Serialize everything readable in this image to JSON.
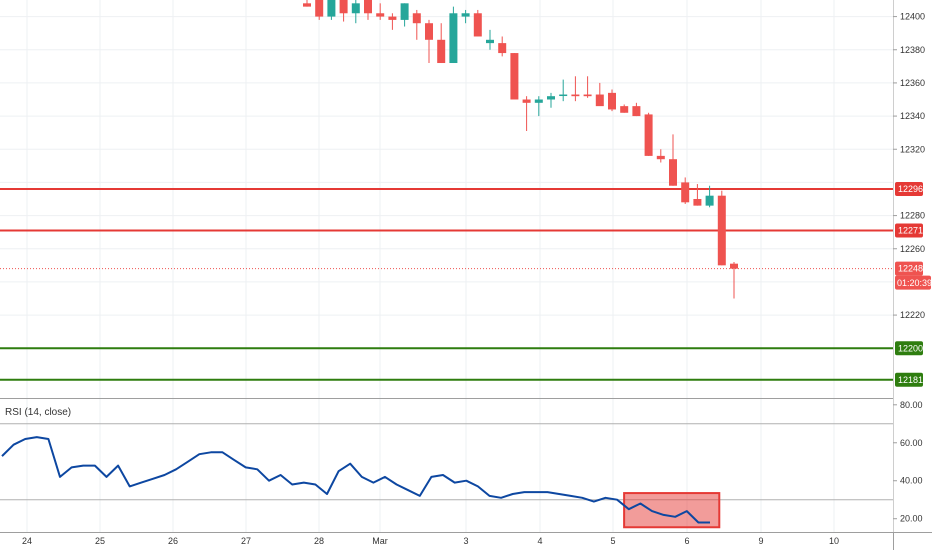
{
  "chart_data": [
    {
      "type": "candlestick",
      "price_axis": {
        "ticks": [
          "12400",
          "12380",
          "12360",
          "12340",
          "12320",
          "12280",
          "12260",
          "12220"
        ],
        "tick_values": [
          12400,
          12380,
          12360,
          12340,
          12320,
          12280,
          12260,
          12220
        ],
        "range": [
          12170,
          12410
        ]
      },
      "time_axis": {
        "labels": [
          "24",
          "25",
          "26",
          "27",
          "28",
          "Mar",
          "3",
          "4",
          "5",
          "6",
          "9",
          "10"
        ]
      },
      "candles": [
        {
          "o": 12408,
          "h": 12410,
          "l": 12406,
          "c": 12406
        },
        {
          "o": 12410,
          "h": 12412,
          "l": 12398,
          "c": 12400
        },
        {
          "o": 12400,
          "h": 12412,
          "l": 12398,
          "c": 12410
        },
        {
          "o": 12410,
          "h": 12412,
          "l": 12397,
          "c": 12402
        },
        {
          "o": 12402,
          "h": 12412,
          "l": 12396,
          "c": 12408
        },
        {
          "o": 12412,
          "h": 12414,
          "l": 12398,
          "c": 12402
        },
        {
          "o": 12402,
          "h": 12408,
          "l": 12398,
          "c": 12400
        },
        {
          "o": 12400,
          "h": 12402,
          "l": 12392,
          "c": 12398
        },
        {
          "o": 12398,
          "h": 12408,
          "l": 12394,
          "c": 12408
        },
        {
          "o": 12402,
          "h": 12404,
          "l": 12386,
          "c": 12396
        },
        {
          "o": 12396,
          "h": 12398,
          "l": 12372,
          "c": 12386
        },
        {
          "o": 12386,
          "h": 12396,
          "l": 12372,
          "c": 12372
        },
        {
          "o": 12372,
          "h": 12406,
          "l": 12372,
          "c": 12402
        },
        {
          "o": 12400,
          "h": 12404,
          "l": 12396,
          "c": 12402
        },
        {
          "o": 12402,
          "h": 12404,
          "l": 12388,
          "c": 12388
        },
        {
          "o": 12384,
          "h": 12392,
          "l": 12380,
          "c": 12386
        },
        {
          "o": 12384,
          "h": 12388,
          "l": 12376,
          "c": 12378
        },
        {
          "o": 12378,
          "h": 12378,
          "l": 12350,
          "c": 12350
        },
        {
          "o": 12350,
          "h": 12352,
          "l": 12331,
          "c": 12348
        },
        {
          "o": 12348,
          "h": 12352,
          "l": 12340,
          "c": 12350
        },
        {
          "o": 12350,
          "h": 12354,
          "l": 12345,
          "c": 12352
        },
        {
          "o": 12353,
          "h": 12362,
          "l": 12349,
          "c": 12353
        },
        {
          "o": 12353,
          "h": 12364,
          "l": 12349,
          "c": 12352
        },
        {
          "o": 12353,
          "h": 12364,
          "l": 12351,
          "c": 12352
        },
        {
          "o": 12353,
          "h": 12360,
          "l": 12347,
          "c": 12346
        },
        {
          "o": 12354,
          "h": 12356,
          "l": 12343,
          "c": 12344
        },
        {
          "o": 12346,
          "h": 12347,
          "l": 12342,
          "c": 12342
        },
        {
          "o": 12346,
          "h": 12348,
          "l": 12340,
          "c": 12340
        },
        {
          "o": 12341,
          "h": 12342,
          "l": 12316,
          "c": 12316
        },
        {
          "o": 12316,
          "h": 12320,
          "l": 12312,
          "c": 12314
        },
        {
          "o": 12314,
          "h": 12329,
          "l": 12298,
          "c": 12298
        },
        {
          "o": 12300,
          "h": 12303,
          "l": 12287,
          "c": 12288
        },
        {
          "o": 12290,
          "h": 12299,
          "l": 12286,
          "c": 12286
        },
        {
          "o": 12286,
          "h": 12298,
          "l": 12285,
          "c": 12292
        },
        {
          "o": 12292,
          "h": 12295,
          "l": 12250,
          "c": 12250
        },
        {
          "o": 12251,
          "h": 12252,
          "l": 12230,
          "c": 12248
        }
      ],
      "candle_x_start": 0.0,
      "candle_x_step": 1.0,
      "colors": {
        "up": "#26a69a",
        "down": "#ef5350"
      },
      "levels": [
        {
          "value": 12296,
          "label": "12296",
          "color": "#e53935"
        },
        {
          "value": 12271,
          "label": "12271",
          "color": "#e53935"
        },
        {
          "value": 12200,
          "label": "12200",
          "color": "#2e7d0f"
        },
        {
          "value": 12181,
          "label": "12181",
          "color": "#2e7d0f"
        }
      ],
      "last_price": {
        "value": 12248,
        "label": "12248",
        "countdown": "01:20:39",
        "color": "#ef5350"
      }
    },
    {
      "type": "line",
      "title": "RSI (14, close)",
      "y_ticks": [
        "80.00",
        "60.00",
        "40.00",
        "20.00"
      ],
      "y_tick_values": [
        80,
        60,
        40,
        20
      ],
      "ylim": [
        13,
        82
      ],
      "bands": [
        70,
        30
      ],
      "series": [
        {
          "color": "#0d47a1",
          "values": [
            53,
            59,
            62,
            63,
            62,
            42,
            47,
            48,
            48,
            42,
            48,
            37,
            39,
            41,
            43,
            46,
            50,
            54,
            55,
            55,
            51,
            47,
            46,
            40,
            43,
            38,
            39,
            38,
            33,
            45,
            49,
            42,
            39,
            42,
            38,
            35,
            32,
            42,
            43,
            39,
            40,
            37,
            32,
            31,
            33,
            34,
            34,
            34,
            33,
            32,
            31,
            29,
            31,
            30,
            25,
            28,
            24,
            22,
            21,
            24,
            18,
            18
          ]
        }
      ],
      "highlight": {
        "from_index": 53.6,
        "to_index": 61.8,
        "y_from": 15.5,
        "y_to": 33.5,
        "color": "#e53935"
      }
    }
  ]
}
